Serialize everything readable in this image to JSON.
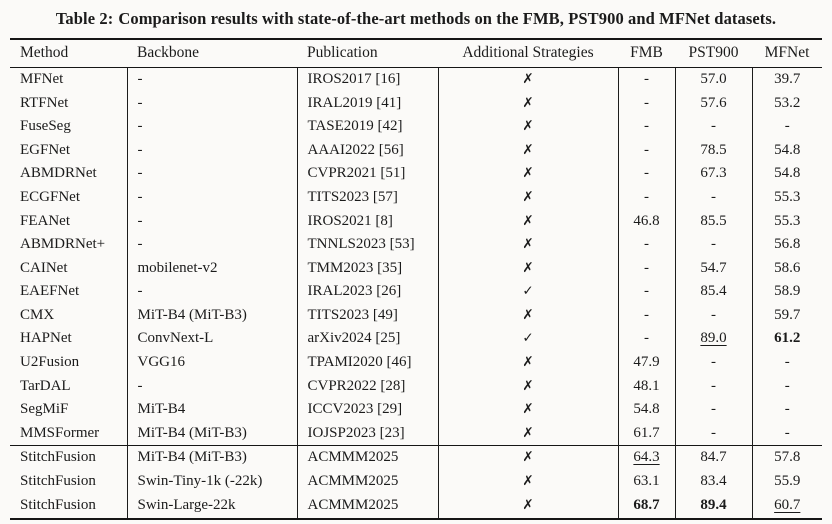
{
  "caption": {
    "label": "Table 2:",
    "text": "Comparison results with state-of-the-art methods on the FMB, PST900 and MFNet datasets."
  },
  "icons": {
    "cross": "✗",
    "check": "✓"
  },
  "colors": {
    "text": "#1b1b1b",
    "rule": "#161616",
    "background": "#fbfaf8"
  },
  "table": {
    "columns": [
      "Method",
      "Backbone",
      "Publication",
      "Additional Strategies",
      "FMB",
      "PST900",
      "MFNet"
    ],
    "groups": [
      {
        "name": "state-of-the-art-methods",
        "rows": [
          {
            "method": "MFNet",
            "backbone": "-",
            "publication": "IROS2017 [16]",
            "strategy": "cross",
            "scores": [
              {
                "text": "-",
                "style": ""
              },
              {
                "text": "57.0",
                "style": ""
              },
              {
                "text": "39.7",
                "style": ""
              }
            ]
          },
          {
            "method": "RTFNet",
            "backbone": "-",
            "publication": "IRAL2019 [41]",
            "strategy": "cross",
            "scores": [
              {
                "text": "-",
                "style": ""
              },
              {
                "text": "57.6",
                "style": ""
              },
              {
                "text": "53.2",
                "style": ""
              }
            ]
          },
          {
            "method": "FuseSeg",
            "backbone": "-",
            "publication": "TASE2019 [42]",
            "strategy": "cross",
            "scores": [
              {
                "text": "-",
                "style": ""
              },
              {
                "text": "-",
                "style": ""
              },
              {
                "text": "-",
                "style": ""
              }
            ]
          },
          {
            "method": "EGFNet",
            "backbone": "-",
            "publication": "AAAI2022 [56]",
            "strategy": "cross",
            "scores": [
              {
                "text": "-",
                "style": ""
              },
              {
                "text": "78.5",
                "style": ""
              },
              {
                "text": "54.8",
                "style": ""
              }
            ]
          },
          {
            "method": "ABMDRNet",
            "backbone": "-",
            "publication": "CVPR2021 [51]",
            "strategy": "cross",
            "scores": [
              {
                "text": "-",
                "style": ""
              },
              {
                "text": "67.3",
                "style": ""
              },
              {
                "text": "54.8",
                "style": ""
              }
            ]
          },
          {
            "method": "ECGFNet",
            "backbone": "-",
            "publication": "TITS2023 [57]",
            "strategy": "cross",
            "scores": [
              {
                "text": "-",
                "style": ""
              },
              {
                "text": "-",
                "style": ""
              },
              {
                "text": "55.3",
                "style": ""
              }
            ]
          },
          {
            "method": "FEANet",
            "backbone": "-",
            "publication": "IROS2021 [8]",
            "strategy": "cross",
            "scores": [
              {
                "text": "46.8",
                "style": ""
              },
              {
                "text": "85.5",
                "style": ""
              },
              {
                "text": "55.3",
                "style": ""
              }
            ]
          },
          {
            "method": "ABMDRNet+",
            "backbone": "-",
            "publication": "TNNLS2023 [53]",
            "strategy": "cross",
            "scores": [
              {
                "text": "-",
                "style": ""
              },
              {
                "text": "-",
                "style": ""
              },
              {
                "text": "56.8",
                "style": ""
              }
            ]
          },
          {
            "method": "CAINet",
            "backbone": "mobilenet-v2",
            "publication": "TMM2023 [35]",
            "strategy": "cross",
            "scores": [
              {
                "text": "-",
                "style": ""
              },
              {
                "text": "54.7",
                "style": ""
              },
              {
                "text": "58.6",
                "style": ""
              }
            ]
          },
          {
            "method": "EAEFNet",
            "backbone": "-",
            "publication": "IRAL2023 [26]",
            "strategy": "check",
            "scores": [
              {
                "text": "-",
                "style": ""
              },
              {
                "text": "85.4",
                "style": ""
              },
              {
                "text": "58.9",
                "style": ""
              }
            ]
          },
          {
            "method": "CMX",
            "backbone": "MiT-B4 (MiT-B3)",
            "publication": "TITS2023 [49]",
            "strategy": "cross",
            "scores": [
              {
                "text": "-",
                "style": ""
              },
              {
                "text": "-",
                "style": ""
              },
              {
                "text": "59.7",
                "style": ""
              }
            ]
          },
          {
            "method": "HAPNet",
            "backbone": "ConvNext-L",
            "publication": "arXiv2024 [25]",
            "strategy": "check",
            "scores": [
              {
                "text": "-",
                "style": ""
              },
              {
                "text": "89.0",
                "style": "underline"
              },
              {
                "text": "61.2",
                "style": "bold"
              }
            ]
          },
          {
            "method": "U2Fusion",
            "backbone": "VGG16",
            "publication": "TPAMI2020 [46]",
            "strategy": "cross",
            "scores": [
              {
                "text": "47.9",
                "style": ""
              },
              {
                "text": "-",
                "style": ""
              },
              {
                "text": "-",
                "style": ""
              }
            ]
          },
          {
            "method": "TarDAL",
            "backbone": "-",
            "publication": "CVPR2022 [28]",
            "strategy": "cross",
            "scores": [
              {
                "text": "48.1",
                "style": ""
              },
              {
                "text": "-",
                "style": ""
              },
              {
                "text": "-",
                "style": ""
              }
            ]
          },
          {
            "method": "SegMiF",
            "backbone": "MiT-B4",
            "publication": "ICCV2023 [29]",
            "strategy": "cross",
            "scores": [
              {
                "text": "54.8",
                "style": ""
              },
              {
                "text": "-",
                "style": ""
              },
              {
                "text": "-",
                "style": ""
              }
            ]
          },
          {
            "method": "MMSFormer",
            "backbone": "MiT-B4 (MiT-B3)",
            "publication": "IOJSP2023 [23]",
            "strategy": "cross",
            "scores": [
              {
                "text": "61.7",
                "style": ""
              },
              {
                "text": "-",
                "style": ""
              },
              {
                "text": "-",
                "style": ""
              }
            ]
          }
        ]
      },
      {
        "name": "stitchfusion-ours",
        "rows": [
          {
            "method": "StitchFusion",
            "backbone": "MiT-B4 (MiT-B3)",
            "publication": "ACMMM2025",
            "strategy": "cross",
            "scores": [
              {
                "text": "64.3",
                "style": "underline"
              },
              {
                "text": "84.7",
                "style": ""
              },
              {
                "text": "57.8",
                "style": ""
              }
            ]
          },
          {
            "method": "StitchFusion",
            "backbone": "Swin-Tiny-1k (-22k)",
            "publication": "ACMMM2025",
            "strategy": "cross",
            "scores": [
              {
                "text": "63.1",
                "style": ""
              },
              {
                "text": "83.4",
                "style": ""
              },
              {
                "text": "55.9",
                "style": ""
              }
            ]
          },
          {
            "method": "StitchFusion",
            "backbone": "Swin-Large-22k",
            "publication": "ACMMM2025",
            "strategy": "cross",
            "scores": [
              {
                "text": "68.7",
                "style": "bold"
              },
              {
                "text": "89.4",
                "style": "bold"
              },
              {
                "text": "60.7",
                "style": "underline"
              }
            ]
          }
        ]
      }
    ]
  }
}
